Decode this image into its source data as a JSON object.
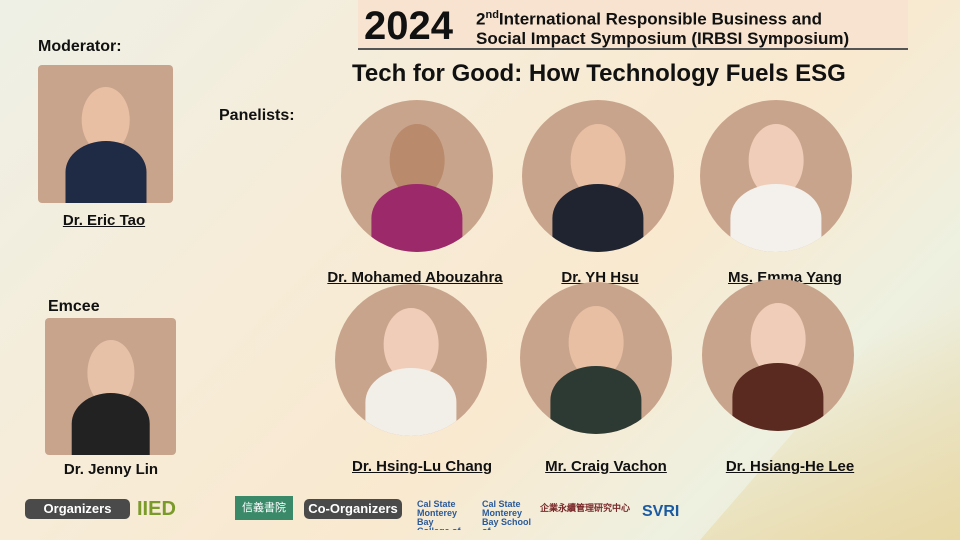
{
  "header": {
    "year": "2024",
    "edition": "2",
    "edition_sup": "nd",
    "subtitle_line1": "International Responsible Business and",
    "subtitle_line2": "Social Impact Symposium (IRBSI Symposium)",
    "title": "Tech for Good: How Technology Fuels ESG"
  },
  "moderator": {
    "label": "Moderator:",
    "name": "Dr. Eric Tao"
  },
  "emcee": {
    "label": "Emcee",
    "name": "Dr. Jenny Lin"
  },
  "panelists": {
    "label": "Panelists:",
    "people": [
      {
        "name": "Dr. Mohamed Abouzahra"
      },
      {
        "name": "Dr. YH Hsu"
      },
      {
        "name": "Ms. Emma Yang"
      },
      {
        "name": "Dr. Hsing-Lu Chang"
      },
      {
        "name": "Mr. Craig Vachon"
      },
      {
        "name": "Dr. Hsiang-He Lee"
      }
    ]
  },
  "footer": {
    "organizers_label": "Organizers",
    "coorganizers_label": "Co-Organizers",
    "logos": [
      "IIED",
      "信義書院",
      "Cal State Monterey Bay College of Business",
      "Cal State Monterey Bay School of Computing and Design",
      "企業永續管理研究中心",
      "SVRI"
    ]
  },
  "colors": {
    "photo_bg": "#c9a48c",
    "pill": "#4a4a4a"
  }
}
